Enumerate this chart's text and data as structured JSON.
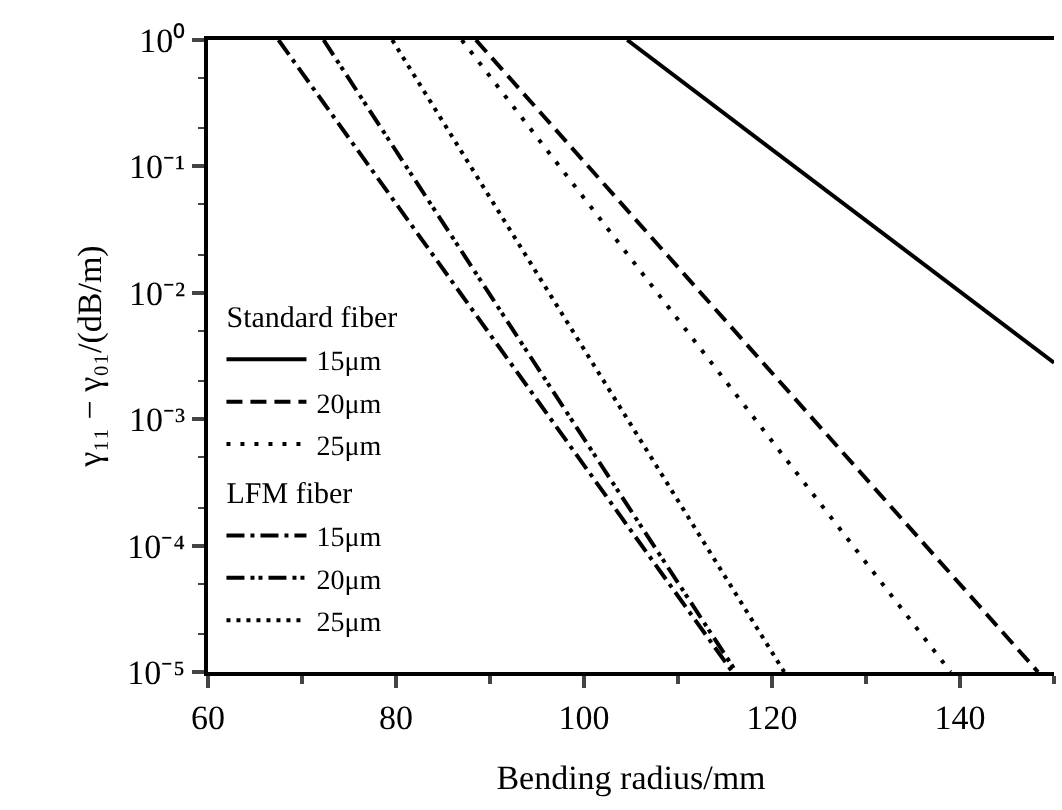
{
  "chart_data": {
    "type": "line",
    "xlabel": "Bending radius/mm",
    "ylabel": "γ₁₁ − γ₀₁/(dB/m)",
    "log": "y",
    "xlim": [
      60,
      150
    ],
    "xticks": [
      60,
      80,
      100,
      120,
      140
    ],
    "ylim": [
      1e-05,
      1
    ],
    "yticks": [
      {
        "value": 1,
        "label": "10⁰"
      },
      {
        "value": 0.1,
        "label": "10⁻¹"
      },
      {
        "value": 0.01,
        "label": "10⁻²"
      },
      {
        "value": 0.001,
        "label": "10⁻³"
      },
      {
        "value": 0.0001,
        "label": "10⁻⁴"
      },
      {
        "value": 1e-05,
        "label": "10⁻⁵"
      }
    ],
    "legend": "bottom left",
    "annotations": [
      "Standard fiber",
      "LFM fiber"
    ],
    "series": [
      {
        "name": "15μm",
        "color": "#000000",
        "line_style": "solid",
        "x": [
          104.6,
          150
        ],
        "values": [
          1,
          0.0028
        ]
      },
      {
        "name": "20μm",
        "color": "#000000",
        "line_style": "dashed",
        "x": [
          88.5,
          148.3
        ],
        "values": [
          1,
          1e-05
        ]
      },
      {
        "name": "25μm",
        "color": "#000000",
        "line_style": "dotted",
        "x": [
          87,
          139
        ],
        "values": [
          1,
          1e-05
        ]
      },
      {
        "name": "15μm",
        "color": "#000000",
        "line_style": "dashdot",
        "x": [
          67.5,
          115.8
        ],
        "values": [
          1,
          1e-05
        ]
      },
      {
        "name": "20μm",
        "color": "#000000",
        "line_style": "dashdotdot",
        "x": [
          72.3,
          116.2
        ],
        "values": [
          1,
          1e-05
        ]
      },
      {
        "name": "25μm",
        "color": "#000000",
        "line_style": "densedot",
        "x": [
          79.6,
          121.3
        ],
        "values": [
          1,
          1e-05
        ]
      }
    ]
  }
}
